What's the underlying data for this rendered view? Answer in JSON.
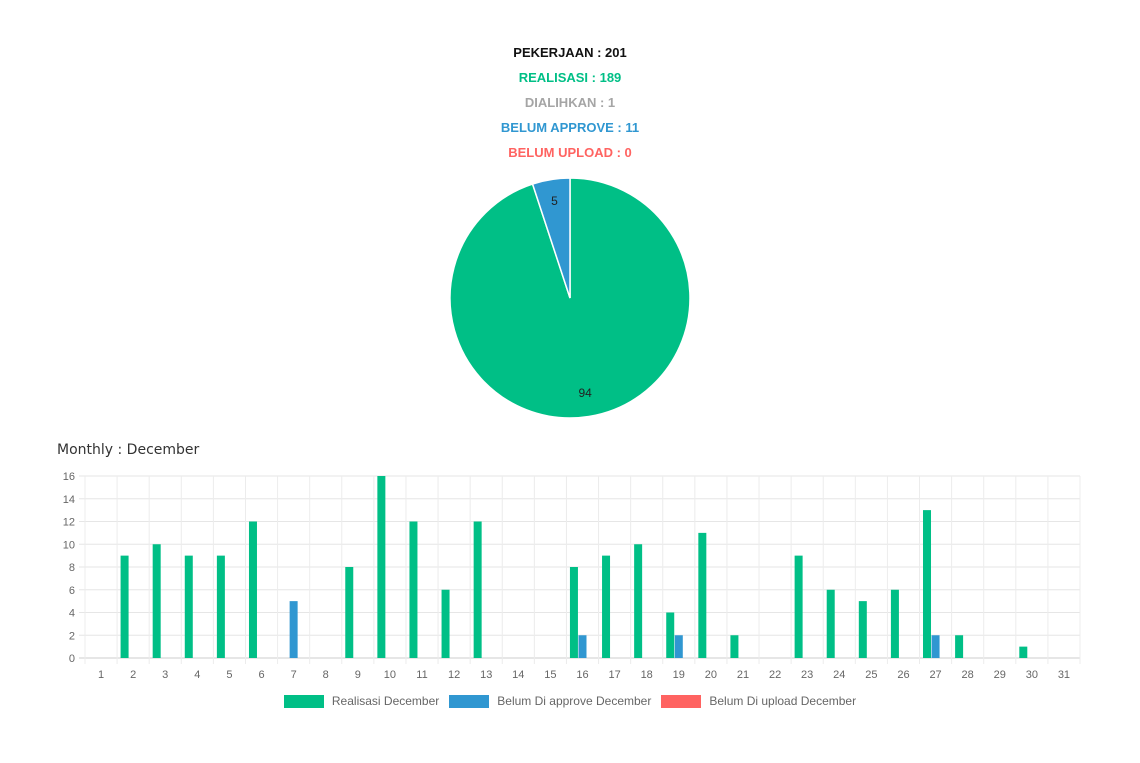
{
  "summary": {
    "pekerjaan": "PEKERJAAN : 201",
    "realisasi": "REALISASI : 189",
    "dialihkan": "DIALIHKAN : 1",
    "belum_approve": "BELUM APPROVE : 11",
    "belum_upload": "BELUM UPLOAD : 0"
  },
  "colors": {
    "realisasi": "#00bf86",
    "belum_approve": "#3097d1",
    "belum_upload": "#ff6361",
    "dialihkan": "#a5a5a5",
    "pekerjaan": "#111111"
  },
  "monthly_title": "Monthly : December",
  "chart_data": [
    {
      "type": "pie",
      "slices": [
        {
          "label": "",
          "value": 94,
          "color": "#00bf86"
        },
        {
          "label": "",
          "value": 5,
          "color": "#3097d1"
        }
      ],
      "data_labels": [
        "94",
        "5"
      ]
    },
    {
      "type": "bar",
      "title": "Monthly : December",
      "categories": [
        "1",
        "2",
        "3",
        "4",
        "5",
        "6",
        "7",
        "8",
        "9",
        "10",
        "11",
        "12",
        "13",
        "14",
        "15",
        "16",
        "17",
        "18",
        "19",
        "20",
        "21",
        "22",
        "23",
        "24",
        "25",
        "26",
        "27",
        "28",
        "29",
        "30",
        "31"
      ],
      "series": [
        {
          "name": "Realisasi December",
          "color": "#00bf86",
          "values": [
            0,
            9,
            10,
            9,
            9,
            12,
            0,
            0,
            8,
            16,
            12,
            6,
            12,
            0,
            0,
            8,
            9,
            10,
            4,
            11,
            2,
            0,
            9,
            6,
            5,
            6,
            13,
            2,
            0,
            1,
            0
          ]
        },
        {
          "name": "Belum Di approve December",
          "color": "#3097d1",
          "values": [
            0,
            0,
            0,
            0,
            0,
            0,
            5,
            0,
            0,
            0,
            0,
            0,
            0,
            0,
            0,
            2,
            0,
            0,
            2,
            0,
            0,
            0,
            0,
            0,
            0,
            0,
            2,
            0,
            0,
            0,
            0
          ]
        },
        {
          "name": "Belum Di upload December",
          "color": "#ff6361",
          "values": [
            0,
            0,
            0,
            0,
            0,
            0,
            0,
            0,
            0,
            0,
            0,
            0,
            0,
            0,
            0,
            0,
            0,
            0,
            0,
            0,
            0,
            0,
            0,
            0,
            0,
            0,
            0,
            0,
            0,
            0,
            0
          ]
        }
      ],
      "ylim": [
        0,
        16
      ],
      "yticks": [
        0,
        2,
        4,
        6,
        8,
        10,
        12,
        14,
        16
      ],
      "grid": true,
      "legend_position": "bottom"
    }
  ]
}
